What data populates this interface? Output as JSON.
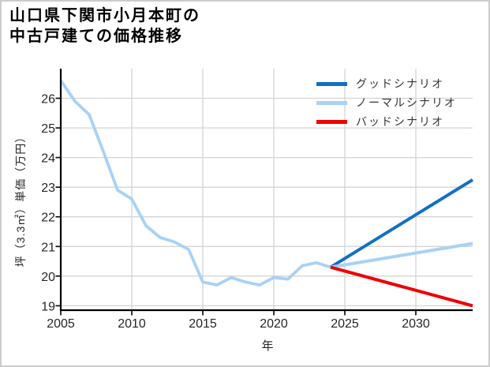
{
  "window": {
    "background": "#ffffff",
    "border_color": "#cccccc"
  },
  "chart_data": {
    "type": "line",
    "title_line1": "山口県下関市小月本町の",
    "title_line2": "中古戸建ての価格推移",
    "xlabel": "年",
    "ylabel": "坪（3.3㎡）単価（万円）",
    "xlim": [
      2005,
      2034
    ],
    "ylim": [
      18.85,
      27.0
    ],
    "x_ticks": [
      2005,
      2010,
      2015,
      2020,
      2025,
      2030
    ],
    "y_ticks": [
      19,
      20,
      21,
      22,
      23,
      24,
      25,
      26
    ],
    "grid": true,
    "grid_color": "#d4d4d4",
    "axis_color": "#000000",
    "tick_label_color": "#262626",
    "title_color": "#000000",
    "legend_text_color": "#333333",
    "legend_position": "top-right",
    "series": [
      {
        "id": "history",
        "color": "#a8d2f6",
        "width": 3.8,
        "x": [
          2005,
          2006,
          2007,
          2008,
          2009,
          2010,
          2011,
          2012,
          2013,
          2014,
          2015,
          2016,
          2017,
          2018,
          2019,
          2020,
          2021,
          2022,
          2023,
          2024
        ],
        "y": [
          26.6,
          25.9,
          25.45,
          24.2,
          22.9,
          22.6,
          21.7,
          21.3,
          21.15,
          20.9,
          19.8,
          19.7,
          19.95,
          19.8,
          19.7,
          19.95,
          19.9,
          20.35,
          20.45,
          20.3
        ]
      },
      {
        "id": "good",
        "label": "グッドシナリオ",
        "color": "#1270c4",
        "width": 4,
        "x": [
          2024,
          2034
        ],
        "y": [
          20.3,
          23.25
        ]
      },
      {
        "id": "normal",
        "label": "ノーマルシナリオ",
        "color": "#a8d2f6",
        "width": 4,
        "x": [
          2024,
          2034
        ],
        "y": [
          20.3,
          21.1
        ]
      },
      {
        "id": "bad",
        "label": "バッドシナリオ",
        "color": "#ee0000",
        "width": 4,
        "x": [
          2024,
          2034
        ],
        "y": [
          20.3,
          19.0
        ]
      }
    ],
    "legend": [
      {
        "label": "グッドシナリオ",
        "color": "#1270c4"
      },
      {
        "label": "ノーマルシナリオ",
        "color": "#a8d2f6"
      },
      {
        "label": "バッドシナリオ",
        "color": "#ee0000"
      }
    ]
  }
}
